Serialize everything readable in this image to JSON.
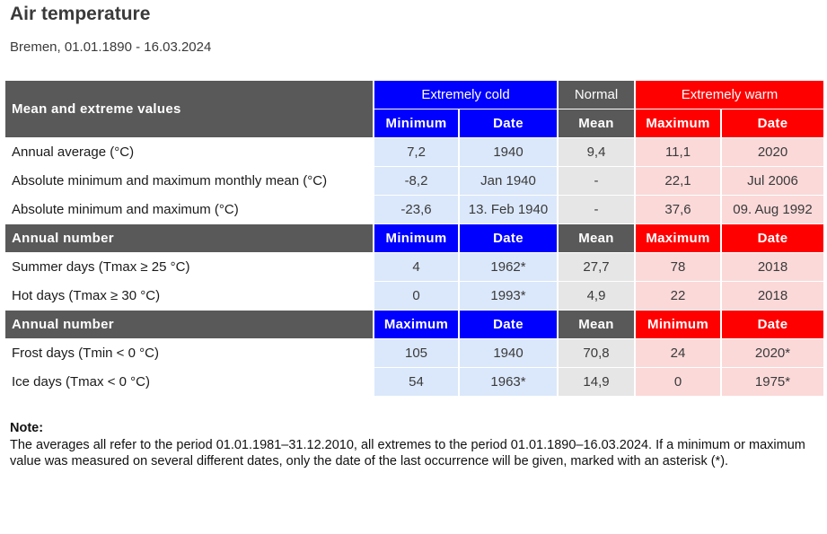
{
  "title": "Air temperature",
  "subtitle": "Bremen, 01.01.1890 - 16.03.2024",
  "table": {
    "header": {
      "main_label": "Mean and extreme values",
      "cold_label": "Extremely cold",
      "normal_label": "Normal",
      "warm_label": "Extremely warm"
    },
    "sections": [
      {
        "title": "",
        "columns": [
          "Minimum",
          "Date",
          "Mean",
          "Maximum",
          "Date"
        ],
        "rows": [
          {
            "label": "Annual average (°C)",
            "values": [
              "7,2",
              "1940",
              "9,4",
              "11,1",
              "2020"
            ]
          },
          {
            "label": "Absolute minimum and maximum monthly mean (°C)",
            "values": [
              "-8,2",
              "Jan 1940",
              "-",
              "22,1",
              "Jul 2006"
            ]
          },
          {
            "label": "Absolute minimum and maximum (°C)",
            "values": [
              "-23,6",
              "13. Feb 1940",
              "-",
              "37,6",
              "09. Aug 1992"
            ]
          }
        ]
      },
      {
        "title": "Annual number",
        "columns": [
          "Minimum",
          "Date",
          "Mean",
          "Maximum",
          "Date"
        ],
        "rows": [
          {
            "label": "Summer days (Tmax ≥ 25 °C)",
            "values": [
              "4",
              "1962*",
              "27,7",
              "78",
              "2018"
            ]
          },
          {
            "label": "Hot days (Tmax ≥ 30 °C)",
            "values": [
              "0",
              "1993*",
              "4,9",
              "22",
              "2018"
            ]
          }
        ]
      },
      {
        "title": "Annual number",
        "columns": [
          "Maximum",
          "Date",
          "Mean",
          "Minimum",
          "Date"
        ],
        "rows": [
          {
            "label": "Frost days (Tmin < 0 °C)",
            "values": [
              "105",
              "1940",
              "70,8",
              "24",
              "2020*"
            ]
          },
          {
            "label": "Ice days (Tmax < 0 °C)",
            "values": [
              "54",
              "1963*",
              "14,9",
              "0",
              "1975*"
            ]
          }
        ]
      }
    ]
  },
  "note": {
    "title": "Note:",
    "text": "The averages all refer to the period 01.01.1981–31.12.2010, all extremes to the period 01.01.1890–16.03.2024. If a minimum or maximum value was measured on several different dates, only the date of the last occurrence will be given, marked with an asterisk (*)."
  },
  "colors": {
    "cold": "#0000ff",
    "normal": "#595959",
    "warm": "#ff0000",
    "cold_cell": "#dbe8fb",
    "normal_cell": "#e6e6e6",
    "warm_cell": "#fbd9d9"
  }
}
